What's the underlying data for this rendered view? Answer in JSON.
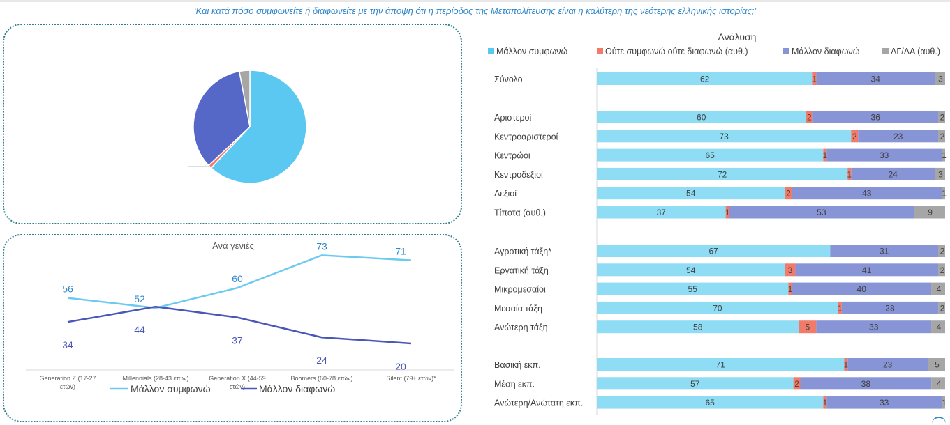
{
  "header": {
    "question": "‘Και κατά πόσο συμφωνείτε ή διαφωνείτε με την άποψη ότι η περίοδος της Μεταπολίτευσης είναι η καλύτερη της νεότερης ελληνικής ιστορίας;’"
  },
  "colors": {
    "agree": "#5bc8f2",
    "agree_bar": "#8fdcf5",
    "neither": "#f07b6b",
    "disagree": "#5567c7",
    "disagree_bar": "#8794d6",
    "dk": "#a6a6a6",
    "line_agree": "#6ccaf0",
    "line_disagree": "#4a56b8",
    "question_text": "#2f86c8"
  },
  "chart_data": [
    {
      "type": "pie",
      "slices": [
        {
          "name": "Μάλλον συμφωνώ",
          "value": 62
        },
        {
          "name": "Ούτε συμφωνώ ούτε διαφωνώ (αυθ.)",
          "value": 1
        },
        {
          "name": "Μάλλον διαφωνώ",
          "value": 34
        },
        {
          "name": "ΔΓ/ΔΑ (αυθ.)",
          "value": 3
        }
      ]
    },
    {
      "type": "line",
      "title": "Ανά γενιές",
      "categories": [
        "Generation Z (17-27 ετών)",
        "Millennials (28-43 ετών)",
        "Generation X (44-59 ετών)",
        "Boomers (60-78 ετών)",
        "Silent (79+ ετών)*"
      ],
      "series": [
        {
          "name": "Μάλλον συμφωνώ",
          "values": [
            56,
            52,
            60,
            73,
            71
          ]
        },
        {
          "name": "Μάλλον διαφωνώ",
          "values": [
            34,
            44,
            37,
            24,
            20
          ]
        }
      ],
      "legend": "bottom"
    },
    {
      "type": "bar",
      "orientation": "horizontal",
      "stacked": true,
      "title": "Ανάλυση",
      "legend": "top",
      "series_names": [
        "Μάλλον συμφωνώ",
        "Ούτε συμφωνώ ούτε διαφωνώ (αυθ.)",
        "Μάλλον διαφωνώ",
        "ΔΓ/ΔΑ (αυθ.)"
      ],
      "groups": [
        [
          {
            "label": "Σύνολο",
            "values": [
              62,
              1,
              34,
              3
            ]
          }
        ],
        [
          {
            "label": "Αριστεροί",
            "values": [
              60,
              2,
              36,
              2
            ]
          },
          {
            "label": "Κεντροαριστεροί",
            "values": [
              73,
              2,
              23,
              2
            ]
          },
          {
            "label": "Κεντρώοι",
            "values": [
              65,
              1,
              33,
              1
            ]
          },
          {
            "label": "Κεντροδεξιοί",
            "values": [
              72,
              1,
              24,
              3
            ]
          },
          {
            "label": "Δεξιοί",
            "values": [
              54,
              2,
              43,
              1
            ]
          },
          {
            "label": "Τίποτα (αυθ.)",
            "values": [
              37,
              1,
              53,
              9
            ]
          }
        ],
        [
          {
            "label": "Αγροτική τάξη*",
            "values": [
              67,
              0,
              31,
              2
            ]
          },
          {
            "label": "Εργατική τάξη",
            "values": [
              54,
              3,
              41,
              2
            ]
          },
          {
            "label": "Μικρομεσαίοι",
            "values": [
              55,
              1,
              40,
              4
            ]
          },
          {
            "label": "Μεσαία τάξη",
            "values": [
              70,
              1,
              28,
              2
            ]
          },
          {
            "label": "Ανώτερη τάξη",
            "values": [
              58,
              5,
              33,
              4
            ]
          }
        ],
        [
          {
            "label": "Βασική εκπ.",
            "values": [
              71,
              1,
              23,
              5
            ]
          },
          {
            "label": "Μέση εκπ.",
            "values": [
              57,
              2,
              38,
              4
            ]
          },
          {
            "label": "Ανώτερη/Ανώτατη εκπ.",
            "values": [
              65,
              1,
              33,
              1
            ]
          }
        ]
      ]
    }
  ]
}
